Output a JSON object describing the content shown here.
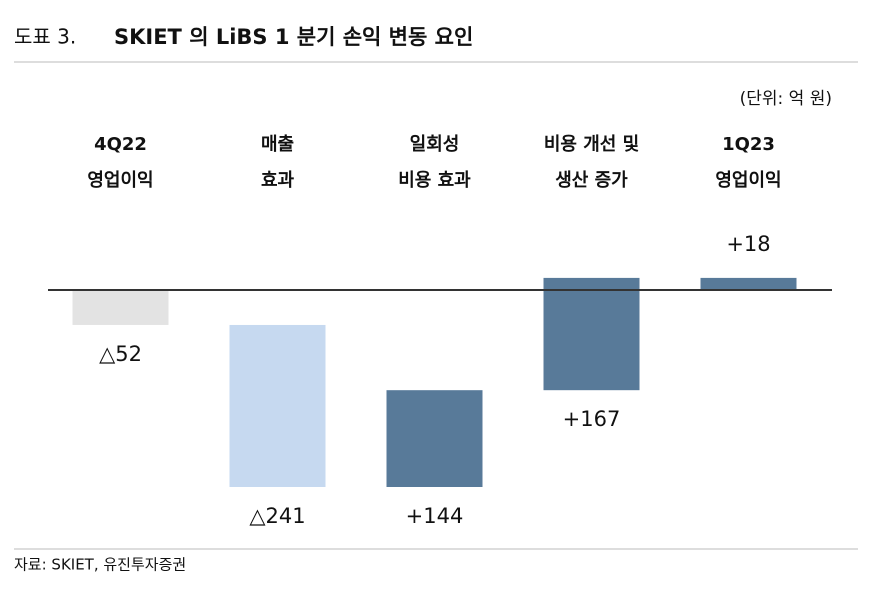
{
  "header": {
    "number": "도표 3.",
    "title": "SKIET 의 LiBS 1 분기 손익 변동 요인"
  },
  "chart_data": {
    "type": "waterfall",
    "unit": "(단위: 억 원)",
    "categories": [
      [
        "4Q22",
        "영업이익"
      ],
      [
        "매출",
        "효과"
      ],
      [
        "일회성",
        "비용 효과"
      ],
      [
        "비용 개선 및",
        "생산 증가"
      ],
      [
        "1Q23",
        "영업이익"
      ]
    ],
    "values": [
      -52,
      -241,
      144,
      167,
      18
    ],
    "value_labels": [
      "△52",
      "△241",
      "+144",
      "+167",
      "+18"
    ],
    "colors": [
      "#e3e3e3",
      "#c6d9f0",
      "#587a99",
      "#587a99",
      "#587a99"
    ]
  },
  "source": "자료: SKIET, 유진투자증권"
}
